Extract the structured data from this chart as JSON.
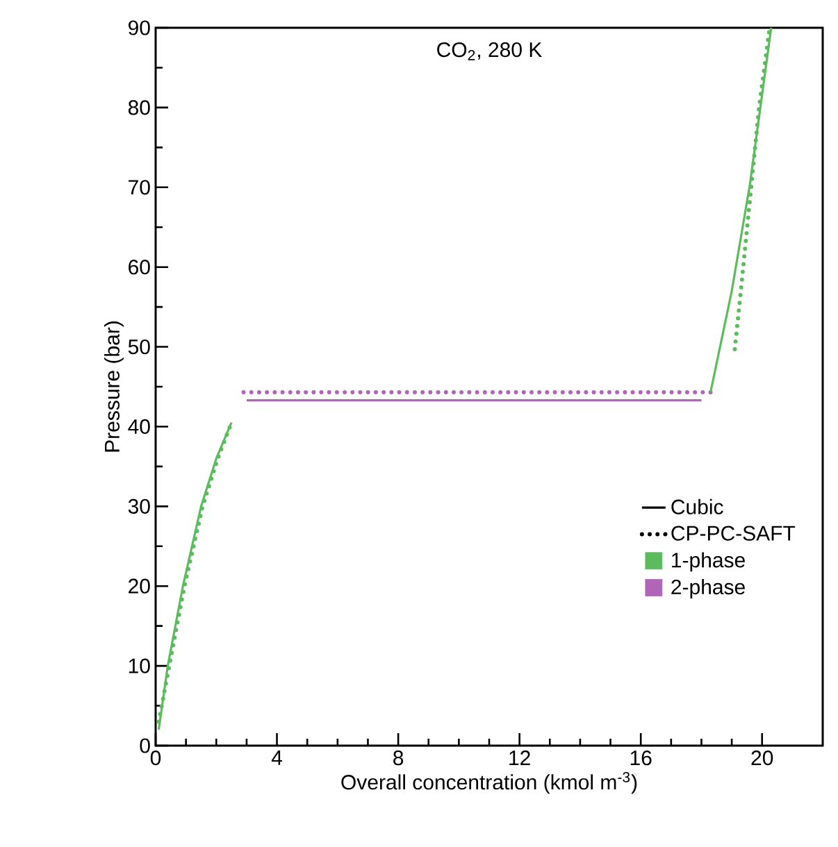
{
  "chart_data": {
    "type": "line",
    "title": "CO$_{2}$, 280 K",
    "xlabel": "Overall concentration (kmol m$^{-3}$)",
    "ylabel": "Pressure (bar)",
    "xlim": [
      0,
      22
    ],
    "ylim": [
      0,
      90
    ],
    "xticks": [
      0,
      4,
      8,
      12,
      16,
      20
    ],
    "yticks": [
      0,
      10,
      20,
      30,
      40,
      50,
      60,
      70,
      80,
      90
    ],
    "grid": false,
    "legend": "bottom right",
    "series": [
      {
        "name": "Cubic",
        "color": "#000000",
        "line_style": "solid"
      },
      {
        "name": "CP-PC-SAFT",
        "color": "#000000",
        "line_style": "dotted"
      },
      {
        "name": "1-phase",
        "color": "#5cbb5c",
        "type": "scatter",
        "marker": "square"
      },
      {
        "name": "2-phase",
        "color": "#b066b6",
        "type": "scatter",
        "marker": "square"
      },
      {
        "color": "#5cbb5c",
        "line_style": "solid",
        "x": [
          0.1,
          0.4,
          0.9,
          1.5,
          2.0,
          2.5
        ],
        "values": [
          2,
          10,
          20,
          30,
          36,
          40.5
        ]
      },
      {
        "color": "#5cbb5c",
        "line_style": "dotted",
        "x": [
          0.1,
          0.45,
          0.95,
          1.55,
          2.05,
          2.5
        ],
        "values": [
          3,
          10,
          20,
          30,
          36,
          40.5
        ]
      },
      {
        "color": "#b066b6",
        "line_style": "solid",
        "x": [
          3.0,
          18.0
        ],
        "values": [
          43.3,
          43.3
        ]
      },
      {
        "color": "#b066b6",
        "line_style": "dotted",
        "x": [
          2.9,
          18.4
        ],
        "values": [
          44.3,
          44.3
        ]
      },
      {
        "color": "#5cbb5c",
        "line_style": "solid",
        "x": [
          18.3,
          19.0,
          19.6,
          20.3
        ],
        "values": [
          44.3,
          57,
          70.4,
          90
        ]
      },
      {
        "color": "#5cbb5c",
        "line_style": "dotted",
        "x": [
          19.1,
          19.3,
          19.65,
          19.9,
          20.25
        ],
        "values": [
          49.7,
          57,
          70.4,
          80,
          90
        ]
      }
    ]
  }
}
